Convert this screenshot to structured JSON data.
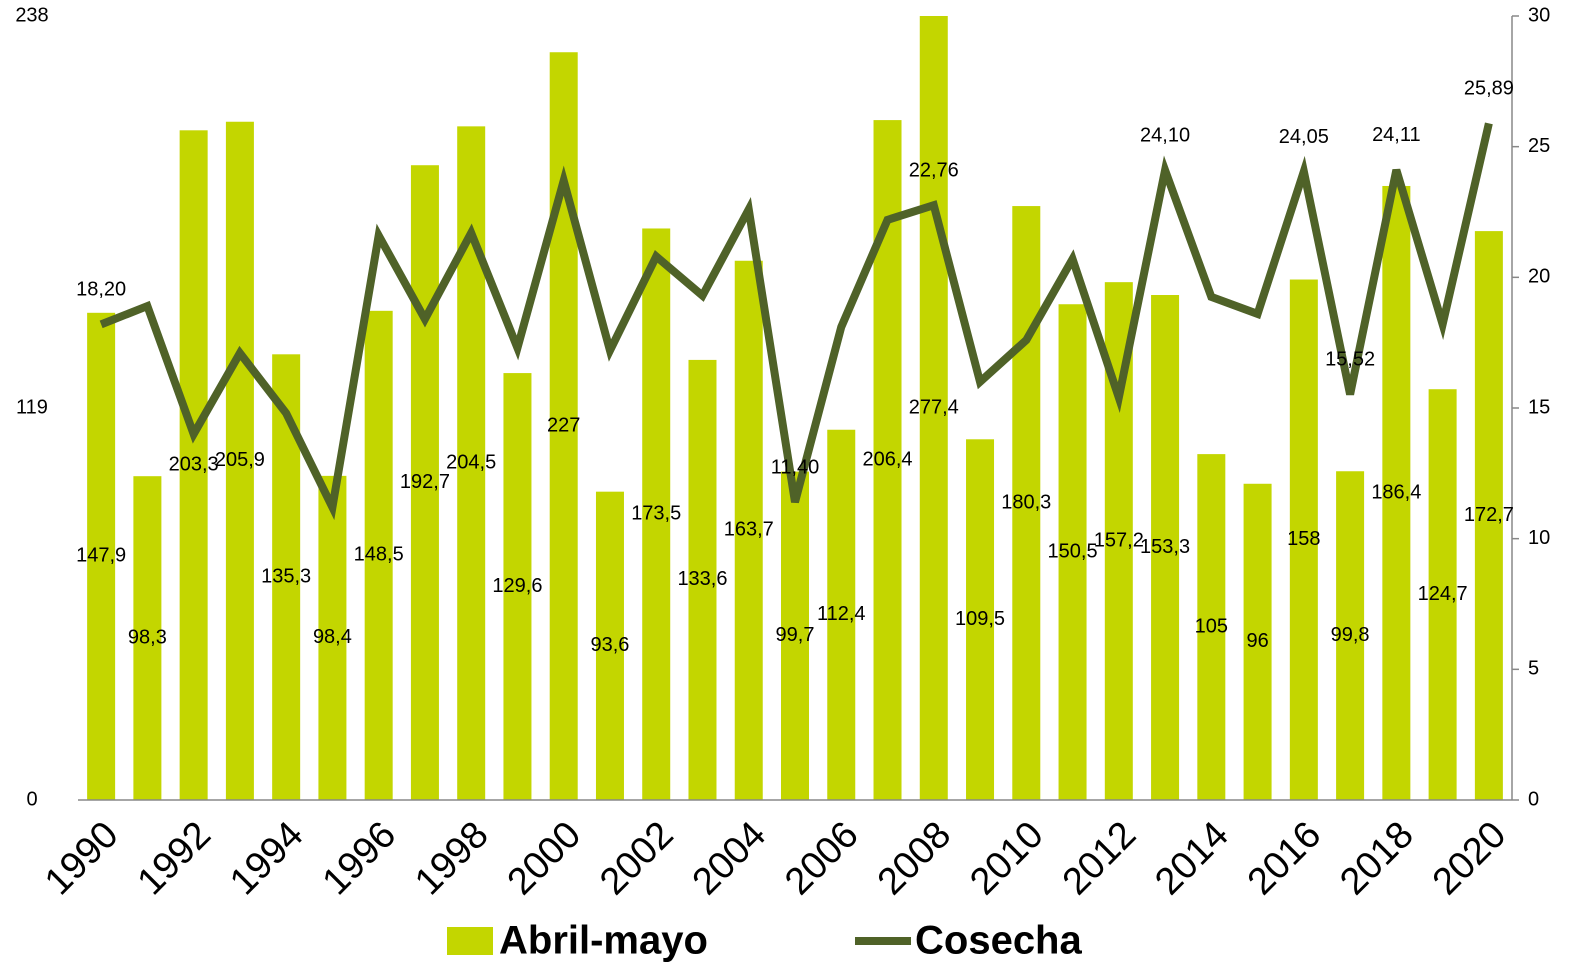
{
  "chart_data": {
    "type": "bar_line",
    "categories": [
      "1990",
      null,
      "1992",
      null,
      "1994",
      null,
      "1996",
      null,
      "1998",
      null,
      "2000",
      null,
      "2002",
      null,
      "2004",
      null,
      "2006",
      null,
      "2008",
      null,
      "2010",
      null,
      "2012",
      null,
      "2014",
      null,
      "2016",
      null,
      "2018",
      null,
      "2020"
    ],
    "series": [
      {
        "name": "Abril-mayo",
        "type": "bar",
        "color": "#c3d600",
        "values": [
          147.9,
          98.3,
          203.3,
          205.9,
          135.3,
          98.4,
          148.5,
          192.7,
          204.5,
          129.6,
          227,
          93.6,
          173.5,
          133.6,
          163.7,
          99.7,
          112.4,
          206.4,
          277.4,
          109.5,
          180.3,
          150.5,
          157.2,
          153.3,
          105,
          96,
          158,
          99.8,
          186.4,
          124.7,
          172.7
        ],
        "value_labels": [
          "147,9",
          "98,3",
          "203,3",
          "205,9",
          "135,3",
          "98,4",
          "148,5",
          "192,7",
          "204,5",
          "129,6",
          "227",
          "93,6",
          "173,5",
          "133,6",
          "163,7",
          "99,7",
          "112,4",
          "206,4",
          "277,4",
          "109,5",
          "180,3",
          "150,5",
          "157,2",
          "153,3",
          "105",
          "96",
          "158",
          "99,8",
          "186,4",
          "124,7",
          "172,7"
        ]
      },
      {
        "name": "Cosecha",
        "type": "line",
        "axis": "y2",
        "color": "#4f6228",
        "values": [
          18.2,
          18.9,
          14.0,
          17.1,
          14.8,
          11.2,
          21.6,
          18.4,
          21.7,
          17.3,
          23.7,
          17.2,
          20.8,
          19.3,
          22.6,
          11.4,
          18.1,
          22.2,
          22.76,
          16.0,
          17.6,
          20.7,
          15.4,
          24.1,
          19.25,
          18.6,
          24.05,
          15.52,
          24.11,
          18.2,
          25.89
        ],
        "value_labels": [
          "18,20",
          null,
          null,
          null,
          null,
          null,
          null,
          null,
          null,
          null,
          null,
          null,
          null,
          null,
          null,
          "11,40",
          null,
          null,
          "22,76",
          null,
          null,
          null,
          null,
          "24,10",
          null,
          null,
          "24,05",
          "15,52",
          "24,11",
          null,
          "25,89"
        ]
      }
    ],
    "ylim": [
      0,
      238
    ],
    "yticks": [
      0,
      119,
      238
    ],
    "y2lim": [
      0,
      30
    ],
    "y2ticks": [
      0,
      5,
      10,
      15,
      20,
      25,
      30
    ],
    "legend": "bottom"
  }
}
